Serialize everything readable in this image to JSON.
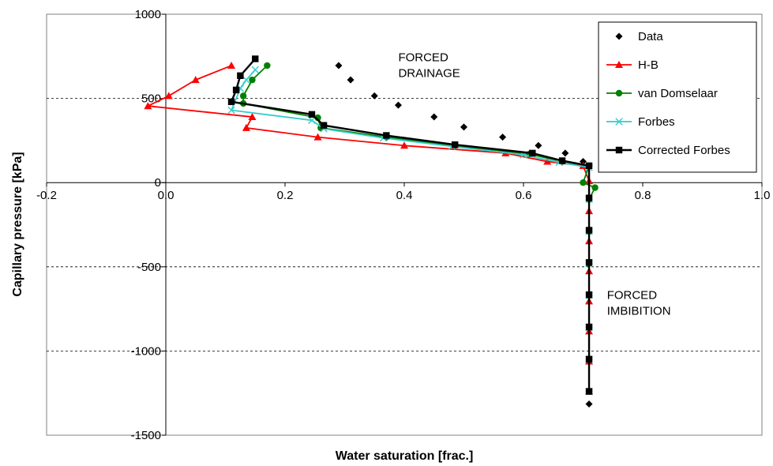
{
  "chart_data": {
    "type": "scatter",
    "xlabel": "Water saturation [frac.]",
    "ylabel": "Capillary pressure [kPa]",
    "xlim": [
      -0.2,
      1.0
    ],
    "ylim": [
      -1500,
      1000
    ],
    "x_ticks": [
      "-0.2",
      "0.0",
      "0.2",
      "0.4",
      "0.6",
      "0.8",
      "1.0"
    ],
    "y_ticks": [
      "1000",
      "500",
      "0",
      "-500",
      "-1000",
      "-1500"
    ],
    "grid": "horizontal dashed",
    "legend": "top-right",
    "annotations": [
      {
        "lines": [
          "FORCED",
          "DRAINAGE"
        ],
        "x": 0.39,
        "y": 720
      },
      {
        "lines": [
          "FORCED",
          "IMBIBITION"
        ],
        "x": 0.74,
        "y": -690
      }
    ],
    "series": [
      {
        "name": "Data",
        "style": "markers",
        "marker": "diamond",
        "color": "#000000",
        "points": [
          [
            0.29,
            695
          ],
          [
            0.31,
            610
          ],
          [
            0.35,
            515
          ],
          [
            0.39,
            460
          ],
          [
            0.45,
            390
          ],
          [
            0.5,
            330
          ],
          [
            0.565,
            270
          ],
          [
            0.625,
            220
          ],
          [
            0.67,
            175
          ],
          [
            0.7,
            125
          ],
          [
            0.71,
            100
          ],
          [
            0.71,
            -1315
          ]
        ]
      },
      {
        "name": "H-B",
        "style": "line+markers",
        "marker": "triangle",
        "color": "#ff0000",
        "points": [
          [
            0.11,
            695
          ],
          [
            0.05,
            610
          ],
          [
            0.005,
            515
          ],
          [
            -0.03,
            455
          ],
          [
            0.145,
            390
          ],
          [
            0.135,
            325
          ],
          [
            0.255,
            270
          ],
          [
            0.4,
            220
          ],
          [
            0.57,
            175
          ],
          [
            0.64,
            125
          ],
          [
            0.7,
            100
          ],
          [
            0.71,
            10
          ],
          [
            0.71,
            -1240
          ]
        ]
      },
      {
        "name": "van Domselaar",
        "style": "line+markers",
        "marker": "circle",
        "color": "#008000",
        "points": [
          [
            0.17,
            695
          ],
          [
            0.145,
            610
          ],
          [
            0.13,
            515
          ],
          [
            0.13,
            470
          ],
          [
            0.255,
            385
          ],
          [
            0.26,
            325
          ],
          [
            0.37,
            270
          ],
          [
            0.485,
            220
          ],
          [
            0.61,
            170
          ],
          [
            0.665,
            125
          ],
          [
            0.71,
            100
          ],
          [
            0.7,
            0
          ],
          [
            0.72,
            -30
          ],
          [
            0.71,
            -100
          ],
          [
            0.71,
            -1240
          ]
        ]
      },
      {
        "name": "Forbes",
        "style": "line+markers",
        "marker": "x",
        "color": "#33cccc",
        "points": [
          [
            0.15,
            670
          ],
          [
            0.135,
            610
          ],
          [
            0.125,
            560
          ],
          [
            0.11,
            430
          ],
          [
            0.245,
            370
          ],
          [
            0.265,
            320
          ],
          [
            0.365,
            265
          ],
          [
            0.48,
            215
          ],
          [
            0.6,
            165
          ],
          [
            0.66,
            120
          ],
          [
            0.71,
            90
          ],
          [
            0.71,
            -1240
          ]
        ]
      },
      {
        "name": "Corrected Forbes",
        "style": "line+markers",
        "marker": "square",
        "color": "#000000",
        "points": [
          [
            0.15,
            735
          ],
          [
            0.125,
            635
          ],
          [
            0.118,
            550
          ],
          [
            0.11,
            480
          ],
          [
            0.245,
            405
          ],
          [
            0.265,
            340
          ],
          [
            0.37,
            280
          ],
          [
            0.485,
            225
          ],
          [
            0.615,
            175
          ],
          [
            0.665,
            130
          ],
          [
            0.71,
            100
          ],
          [
            0.71,
            -1240
          ]
        ]
      }
    ]
  }
}
